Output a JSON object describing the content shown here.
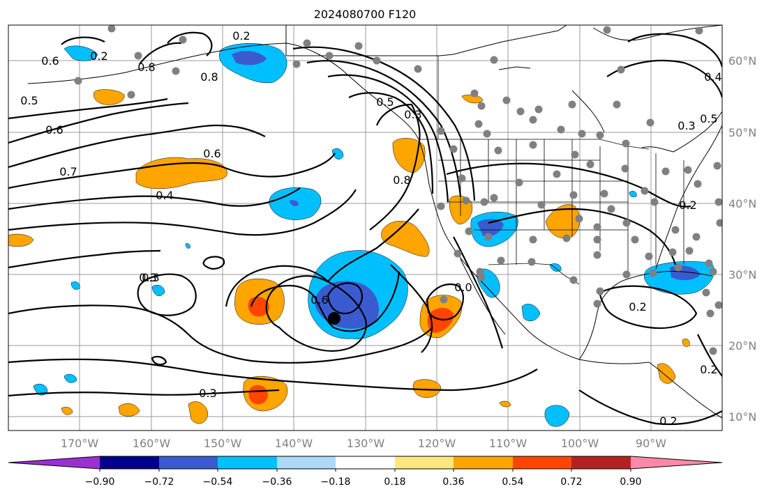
{
  "title": "2024080700 F120",
  "lon_labels": [
    "170°W",
    "160°W",
    "150°W",
    "140°W",
    "130°W",
    "120°W",
    "110°W",
    "100°W",
    "90°W"
  ],
  "lat_labels": [
    "60°N",
    "50°N",
    "40°N",
    "30°N",
    "20°N",
    "10°N"
  ],
  "colorbar": {
    "ticks": [
      "−0.90",
      "−0.72",
      "−0.54",
      "−0.36",
      "−0.18",
      "0.18",
      "0.36",
      "0.54",
      "0.72",
      "0.90"
    ],
    "colors": [
      "#9b30d0",
      "#00008b",
      "#3a5bd0",
      "#00bfff",
      "#add8f7",
      "#ffffff",
      "#ffe680",
      "#ffa500",
      "#ff4500",
      "#b22222",
      "#ff88aa"
    ]
  },
  "contour_labels": [
    "0.2",
    "0.6",
    "0.2",
    "0.8",
    "0.8",
    "0.5",
    "0.6",
    "0.7",
    "0.6",
    "0.4",
    "0.5",
    "0.3",
    "0.8",
    "0.3",
    "0.3",
    "0.6",
    "0.0",
    "0.3",
    "0.2",
    "0.3",
    "0.4",
    "0.5",
    "0.2",
    "0.2",
    "0.2"
  ],
  "colors": {
    "warm_light": "#ffa500",
    "warm_mid": "#ff4500",
    "cool_light": "#00bfff",
    "cool_mid": "#3a5bd0",
    "station": "#808080"
  }
}
